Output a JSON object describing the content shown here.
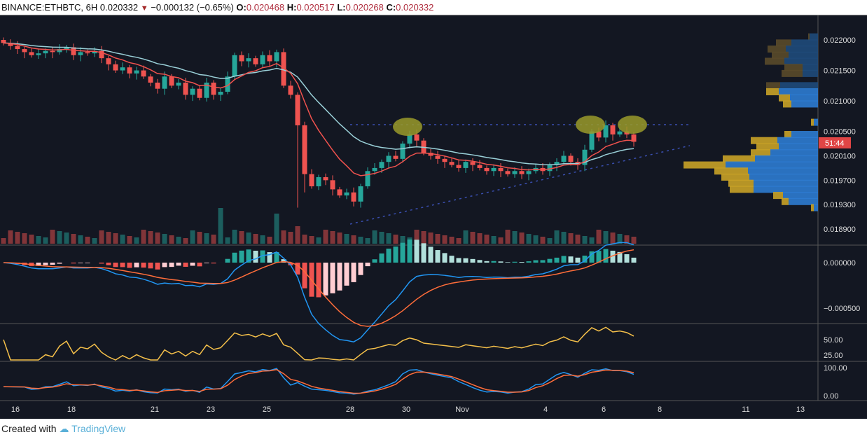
{
  "header": {
    "symbol": "BINANCE:ETHBTC, 6H",
    "last": "0.020332",
    "change": "−0.000132 (−0.65%)",
    "o_label": "O:",
    "o": "0.020468",
    "h_label": "H:",
    "h": "0.020517",
    "l_label": "L:",
    "l": "0.020268",
    "c_label": "C:",
    "c": "0.020332"
  },
  "price_axis": {
    "labels": [
      "0.022000",
      "0.021500",
      "0.021000",
      "0.020500",
      "0.020100",
      "0.019700",
      "0.019300",
      "0.018900"
    ],
    "values": [
      0.022,
      0.0215,
      0.021,
      0.0205,
      0.0201,
      0.0197,
      0.0193,
      0.0189
    ],
    "countdown": "51:44"
  },
  "macd_axis": {
    "labels": [
      "0.000000",
      "−0.000500"
    ]
  },
  "rsi_axis": {
    "labels": [
      "50.00",
      "25.00"
    ]
  },
  "stoch_axis": {
    "labels": [
      "100.00",
      "0.00"
    ]
  },
  "time_axis": {
    "labels": [
      "16",
      "18",
      "21",
      "23",
      "25",
      "28",
      "30",
      "Nov",
      "4",
      "6",
      "8",
      "11",
      "13"
    ]
  },
  "footer": {
    "created": "Created with",
    "brand": "TradingView"
  },
  "colors": {
    "up": "#26a69a",
    "down": "#ef5350",
    "ema_fast": "#f0524e",
    "ema_slow": "#9ad0d8",
    "rsi": "#f5c04a",
    "macd": "#2196f3",
    "signal": "#ff6d3a",
    "bg": "#131722"
  },
  "chart_data": {
    "type": "candlestick",
    "closes": [
      0.02195,
      0.0219,
      0.02185,
      0.0218,
      0.02175,
      0.02178,
      0.02182,
      0.0218,
      0.02185,
      0.02188,
      0.02175,
      0.0218,
      0.02178,
      0.02182,
      0.0217,
      0.0216,
      0.0215,
      0.02155,
      0.02145,
      0.0215,
      0.0214,
      0.0213,
      0.0212,
      0.0214,
      0.02125,
      0.0213,
      0.0211,
      0.0212,
      0.02105,
      0.0213,
      0.0211,
      0.02115,
      0.0214,
      0.02175,
      0.02165,
      0.0217,
      0.0216,
      0.02175,
      0.02165,
      0.0218,
      0.02125,
      0.0211,
      0.0206,
      0.0198,
      0.0196,
      0.01975,
      0.0197,
      0.01955,
      0.01945,
      0.0195,
      0.01935,
      0.0196,
      0.01985,
      0.0199,
      0.02,
      0.0201,
      0.02005,
      0.0203,
      0.02045,
      0.02035,
      0.02015,
      0.0201,
      0.02005,
      0.02,
      0.01995,
      0.0199,
      0.02,
      0.01995,
      0.0199,
      0.01985,
      0.0199,
      0.01985,
      0.0198,
      0.01985,
      0.0198,
      0.01985,
      0.0199,
      0.01985,
      0.01995,
      0.02,
      0.0201,
      0.02,
      0.01995,
      0.0202,
      0.0205,
      0.0204,
      0.0206,
      0.02045,
      0.0205,
      0.02045,
      0.02033
    ],
    "volume_profile": [
      [
        0.02205,
        2,
        12
      ],
      [
        0.02195,
        22,
        38
      ],
      [
        0.02185,
        26,
        46
      ],
      [
        0.02175,
        24,
        42
      ],
      [
        0.02165,
        28,
        48
      ],
      [
        0.02155,
        26,
        22
      ],
      [
        0.02145,
        30,
        22
      ],
      [
        0.02125,
        20,
        54
      ],
      [
        0.02115,
        18,
        56
      ],
      [
        0.02105,
        16,
        40
      ],
      [
        0.02095,
        12,
        38
      ],
      [
        0.02065,
        4,
        6
      ],
      [
        0.02045,
        10,
        38
      ],
      [
        0.02035,
        38,
        58
      ],
      [
        0.02025,
        32,
        56
      ],
      [
        0.02015,
        28,
        68
      ],
      [
        0.02005,
        46,
        90
      ],
      [
        0.01995,
        60,
        132
      ],
      [
        0.01985,
        48,
        100
      ],
      [
        0.01975,
        40,
        98
      ],
      [
        0.01965,
        36,
        92
      ],
      [
        0.01955,
        34,
        92
      ],
      [
        0.01945,
        14,
        50
      ],
      [
        0.01935,
        10,
        42
      ],
      [
        0.01925,
        4,
        6
      ]
    ]
  }
}
